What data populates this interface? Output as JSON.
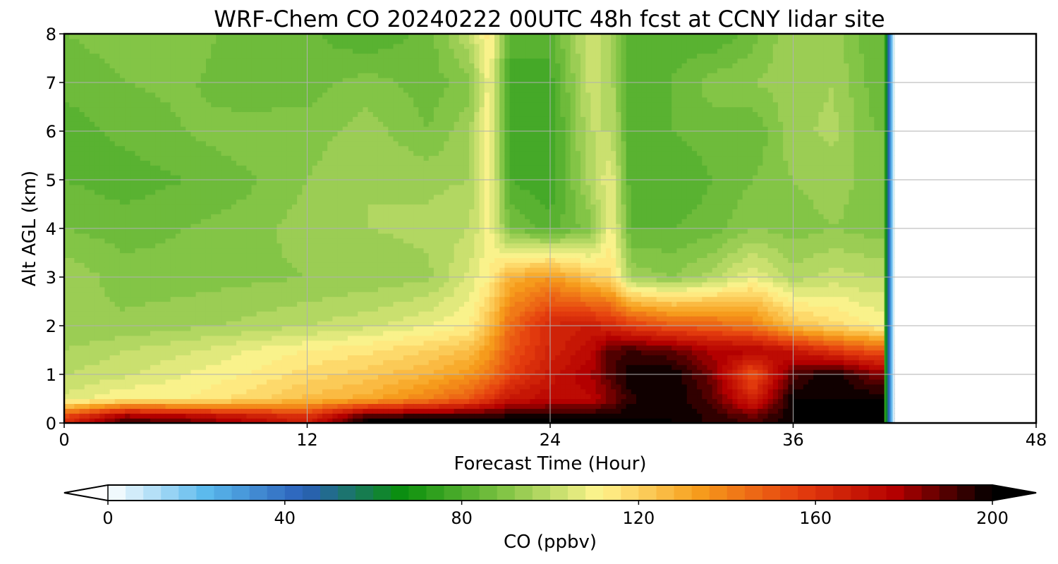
{
  "chart_data": {
    "type": "heatmap",
    "title": "WRF-Chem CO  20240222 00UTC 48h fcst at CCNY lidar site",
    "xlabel": "Forecast Time (Hour)",
    "ylabel": "Alt AGL (km)",
    "xlim": [
      0,
      48
    ],
    "ylim": [
      0,
      8
    ],
    "xticks": [
      0,
      12,
      24,
      36,
      48
    ],
    "yticks": [
      0,
      1,
      2,
      3,
      4,
      5,
      6,
      7,
      8
    ],
    "grid": true,
    "data_end_hour": 41,
    "x_hours": [
      0,
      3,
      6,
      9,
      12,
      15,
      18,
      20,
      21,
      22,
      24,
      26,
      27,
      28,
      30,
      32,
      34,
      36,
      38,
      40
    ],
    "y_km": [
      0.1,
      0.5,
      1,
      1.5,
      2,
      3,
      4,
      5,
      6,
      7,
      8
    ],
    "values": [
      [
        160,
        190,
        185,
        175,
        165,
        200,
        200,
        200,
        200,
        200,
        200,
        200,
        200,
        200,
        200,
        195,
        190,
        200,
        200,
        200
      ],
      [
        105,
        112,
        112,
        118,
        125,
        130,
        140,
        150,
        160,
        170,
        175,
        175,
        185,
        195,
        200,
        190,
        165,
        200,
        200,
        200
      ],
      [
        100,
        103,
        108,
        112,
        118,
        122,
        128,
        135,
        142,
        155,
        170,
        180,
        190,
        200,
        200,
        185,
        150,
        190,
        200,
        185
      ],
      [
        96,
        100,
        103,
        108,
        112,
        115,
        120,
        125,
        135,
        150,
        165,
        175,
        190,
        192,
        188,
        178,
        178,
        170,
        158,
        150
      ],
      [
        92,
        93,
        95,
        97,
        100,
        103,
        108,
        112,
        125,
        145,
        165,
        168,
        165,
        158,
        150,
        148,
        142,
        125,
        118,
        112
      ],
      [
        95,
        90,
        90,
        91,
        92,
        93,
        95,
        105,
        112,
        128,
        135,
        122,
        118,
        95,
        92,
        98,
        108,
        98,
        102,
        100
      ],
      [
        88,
        86,
        88,
        90,
        94,
        96,
        97,
        100,
        110,
        88,
        82,
        90,
        110,
        84,
        84,
        86,
        92,
        90,
        92,
        90
      ],
      [
        84,
        82,
        84,
        87,
        92,
        96,
        95,
        96,
        112,
        80,
        76,
        98,
        108,
        80,
        80,
        84,
        88,
        92,
        94,
        90
      ],
      [
        82,
        85,
        88,
        91,
        90,
        94,
        88,
        95,
        112,
        78,
        76,
        100,
        100,
        80,
        84,
        86,
        84,
        95,
        97,
        88
      ],
      [
        85,
        88,
        89,
        84,
        86,
        90,
        86,
        90,
        110,
        78,
        78,
        102,
        98,
        80,
        84,
        90,
        92,
        94,
        96,
        86
      ],
      [
        88,
        90,
        92,
        84,
        85,
        80,
        86,
        100,
        114,
        82,
        82,
        104,
        96,
        82,
        82,
        80,
        86,
        96,
        94,
        84
      ]
    ],
    "colorbar": {
      "label": "CO  (ppbv)",
      "min": 0,
      "max": 200,
      "ticks": [
        0,
        40,
        80,
        120,
        160,
        200
      ],
      "extend": "both",
      "levels": 50
    },
    "colormap": [
      "#ffffff",
      "#5ab9ed",
      "#2a5fb9",
      "#0a8f0c",
      "#7dc242",
      "#fff48f",
      "#f79e1c",
      "#e6400f",
      "#b50000",
      "#000000"
    ]
  }
}
